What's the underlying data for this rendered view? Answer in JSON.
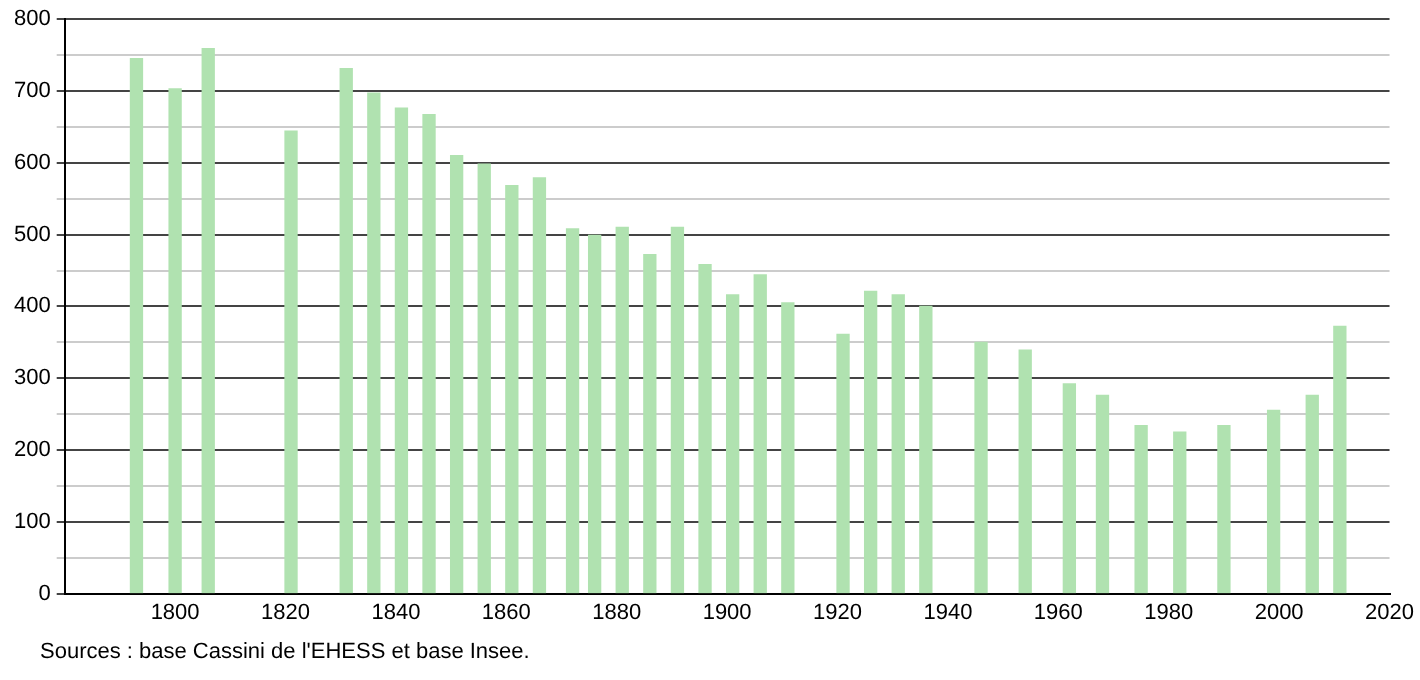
{
  "chart_data": {
    "type": "bar",
    "x": [
      1793,
      1800,
      1806,
      1821,
      1831,
      1836,
      1841,
      1846,
      1851,
      1856,
      1861,
      1866,
      1872,
      1876,
      1881,
      1886,
      1891,
      1896,
      1901,
      1906,
      1911,
      1921,
      1926,
      1931,
      1936,
      1946,
      1954,
      1962,
      1968,
      1975,
      1982,
      1990,
      1999,
      2006,
      2011
    ],
    "values": [
      745,
      703,
      759,
      644,
      731,
      697,
      676,
      667,
      610,
      598,
      568,
      579,
      508,
      499,
      510,
      472,
      510,
      458,
      416,
      444,
      405,
      361,
      421,
      416,
      400,
      350,
      339,
      292,
      276,
      234,
      225,
      234,
      255,
      276,
      372
    ],
    "color": "#b0e2b0",
    "xlim": [
      1780,
      2020
    ],
    "xticks": [
      1800,
      1820,
      1840,
      1860,
      1880,
      1900,
      1920,
      1940,
      1960,
      1980,
      2000,
      2020
    ],
    "ylim": [
      0,
      800
    ],
    "yticks": [
      0,
      {
        "value": 50,
        "label": null
      },
      100,
      {
        "value": 150,
        "label": null
      },
      200,
      {
        "value": 250,
        "label": null
      },
      300,
      {
        "value": 350,
        "label": null
      },
      400,
      {
        "value": 450,
        "label": null
      },
      500,
      {
        "value": 550,
        "label": null
      },
      600,
      {
        "value": 650,
        "label": null
      },
      700,
      {
        "value": 750,
        "label": null
      },
      800
    ],
    "grid": "y",
    "annotations": [
      "Sources : base Cassini de l'EHESS et base Insee."
    ]
  }
}
